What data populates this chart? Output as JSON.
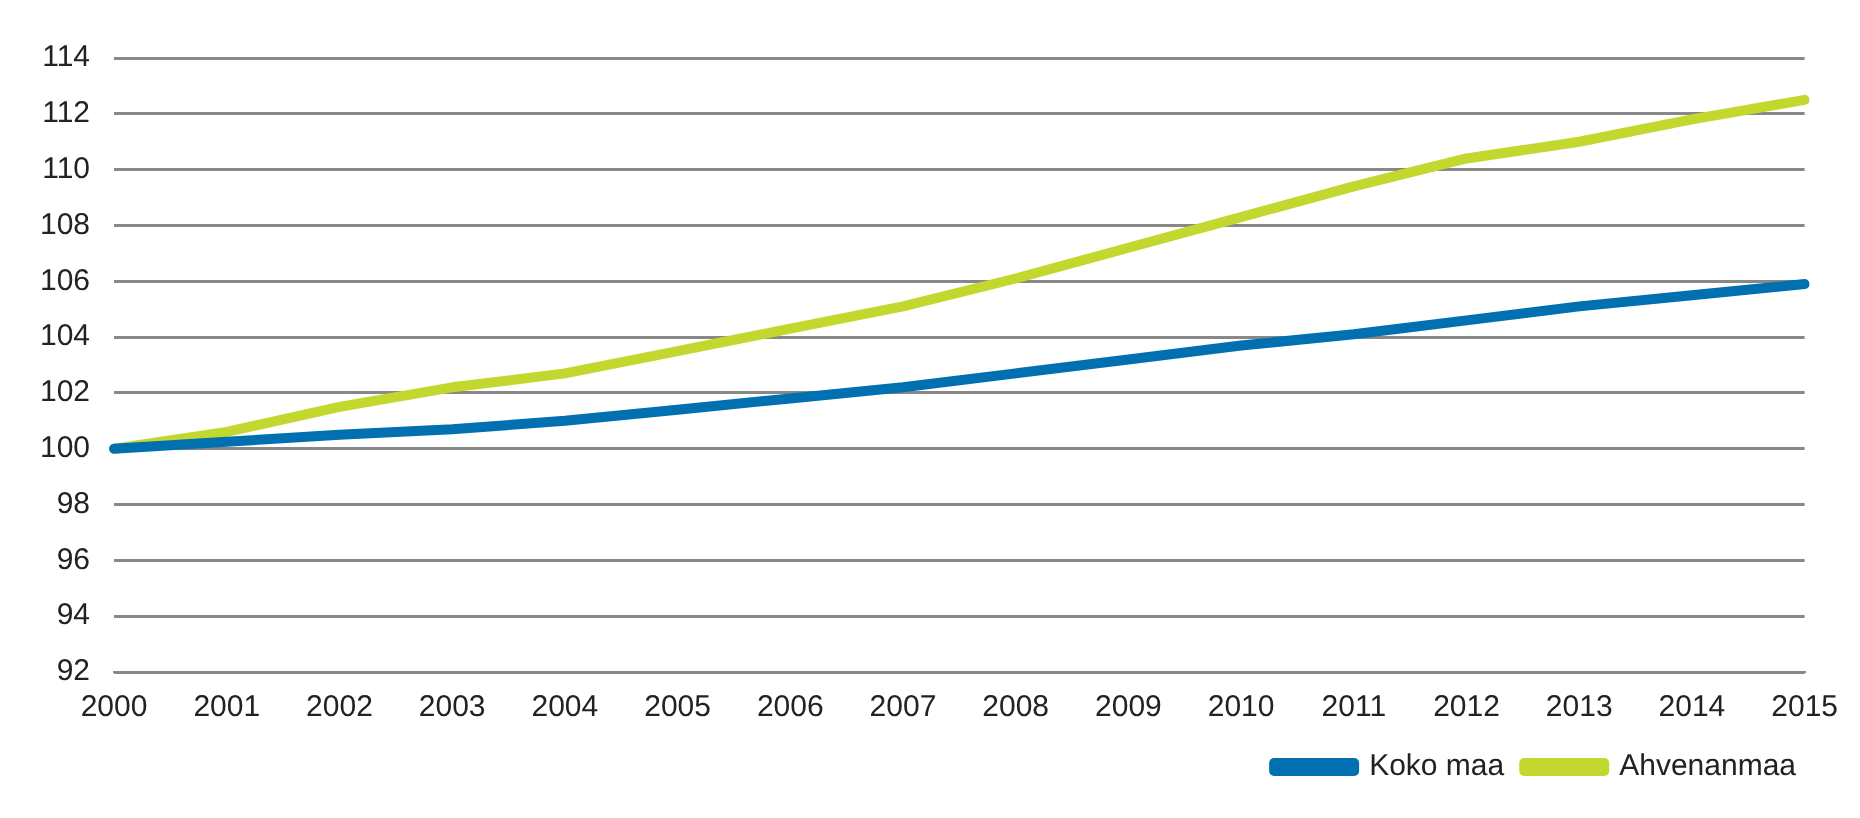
{
  "chart_data": {
    "type": "line",
    "categories": [
      "2000",
      "2001",
      "2002",
      "2003",
      "2004",
      "2005",
      "2006",
      "2007",
      "2008",
      "2009",
      "2010",
      "2011",
      "2012",
      "2013",
      "2014",
      "2015"
    ],
    "series": [
      {
        "name": "Koko maa",
        "color": "#0070b0",
        "values": [
          100,
          100.25,
          100.5,
          100.7,
          101.0,
          101.4,
          101.8,
          102.2,
          102.7,
          103.2,
          103.7,
          104.1,
          104.6,
          105.1,
          105.5,
          105.9
        ]
      },
      {
        "name": "Ahvenanmaa",
        "color": "#c2d82e",
        "values": [
          100,
          100.6,
          101.5,
          102.2,
          102.7,
          103.5,
          104.3,
          105.1,
          106.1,
          107.2,
          108.3,
          109.4,
          110.4,
          111.0,
          111.8,
          112.5
        ]
      }
    ],
    "ylim": [
      92,
      114
    ],
    "yticks": [
      92,
      94,
      96,
      98,
      100,
      102,
      104,
      106,
      108,
      110,
      112,
      114
    ],
    "grid": "y",
    "legend": "bottom right",
    "marker": "none",
    "line_style": "solid"
  }
}
